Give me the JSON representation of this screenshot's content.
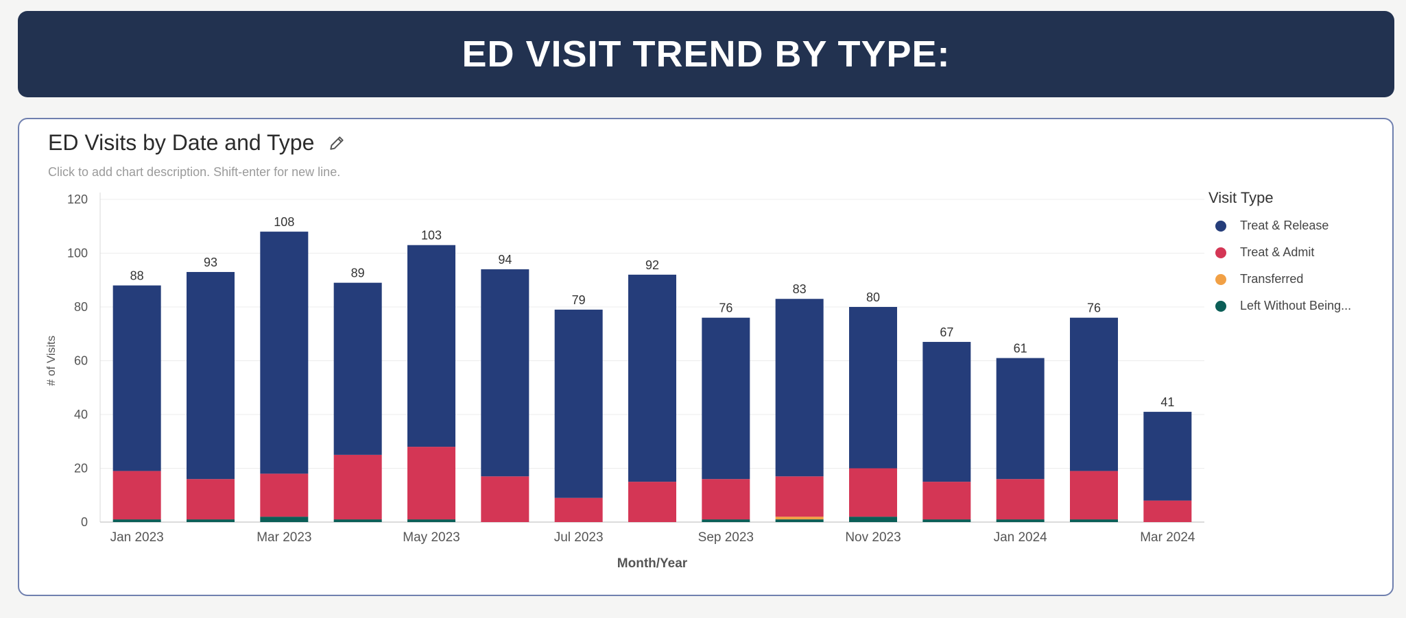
{
  "banner": {
    "title": "ED VISIT TREND BY TYPE:"
  },
  "chart_header": {
    "title": "ED Visits by Date and Type",
    "description": "Click to add chart description. Shift-enter for new line.",
    "edit_icon": "pencil-icon"
  },
  "legend": {
    "title": "Visit Type",
    "items": [
      {
        "label": "Treat & Release",
        "color": "#253d7a"
      },
      {
        "label": "Treat & Admit",
        "color": "#d43655"
      },
      {
        "label": "Transferred",
        "color": "#f1a045"
      },
      {
        "label": "Left Without Being...",
        "color": "#0b5e57"
      }
    ]
  },
  "chart_data": {
    "type": "bar",
    "stacked": true,
    "title": "ED Visits by Date and Type",
    "xlabel": "Month/Year",
    "ylabel": "# of Visits",
    "ylim": [
      0,
      120
    ],
    "yticks": [
      0,
      20,
      40,
      60,
      80,
      100,
      120
    ],
    "grid": true,
    "legend_position": "right",
    "categories": [
      "Jan 2023",
      "Feb 2023",
      "Mar 2023",
      "Apr 2023",
      "May 2023",
      "Jun 2023",
      "Jul 2023",
      "Aug 2023",
      "Sep 2023",
      "Oct 2023",
      "Nov 2023",
      "Dec 2023",
      "Jan 2024",
      "Feb 2024",
      "Mar 2024"
    ],
    "xtick_labels": [
      "Jan 2023",
      "",
      "Mar 2023",
      "",
      "May 2023",
      "",
      "Jul 2023",
      "",
      "Sep 2023",
      "",
      "Nov 2023",
      "",
      "Jan 2024",
      "",
      "Mar 2024"
    ],
    "totals": [
      88,
      93,
      108,
      89,
      103,
      94,
      79,
      92,
      76,
      83,
      80,
      67,
      61,
      76,
      41
    ],
    "series": [
      {
        "name": "Left Without Being...",
        "color": "#0b5e57",
        "values": [
          1,
          1,
          2,
          1,
          1,
          0,
          0,
          0,
          1,
          1,
          2,
          1,
          1,
          1,
          0
        ]
      },
      {
        "name": "Transferred",
        "color": "#f1a045",
        "values": [
          0,
          0,
          0,
          0,
          0,
          0,
          0,
          0,
          0,
          1,
          0,
          0,
          0,
          0,
          0
        ]
      },
      {
        "name": "Treat & Admit",
        "color": "#d43655",
        "values": [
          18,
          15,
          16,
          24,
          27,
          17,
          9,
          15,
          15,
          15,
          18,
          14,
          15,
          18,
          8
        ]
      },
      {
        "name": "Treat & Release",
        "color": "#253d7a",
        "values": [
          69,
          77,
          90,
          64,
          75,
          77,
          70,
          77,
          60,
          66,
          60,
          52,
          45,
          57,
          33
        ]
      }
    ]
  }
}
